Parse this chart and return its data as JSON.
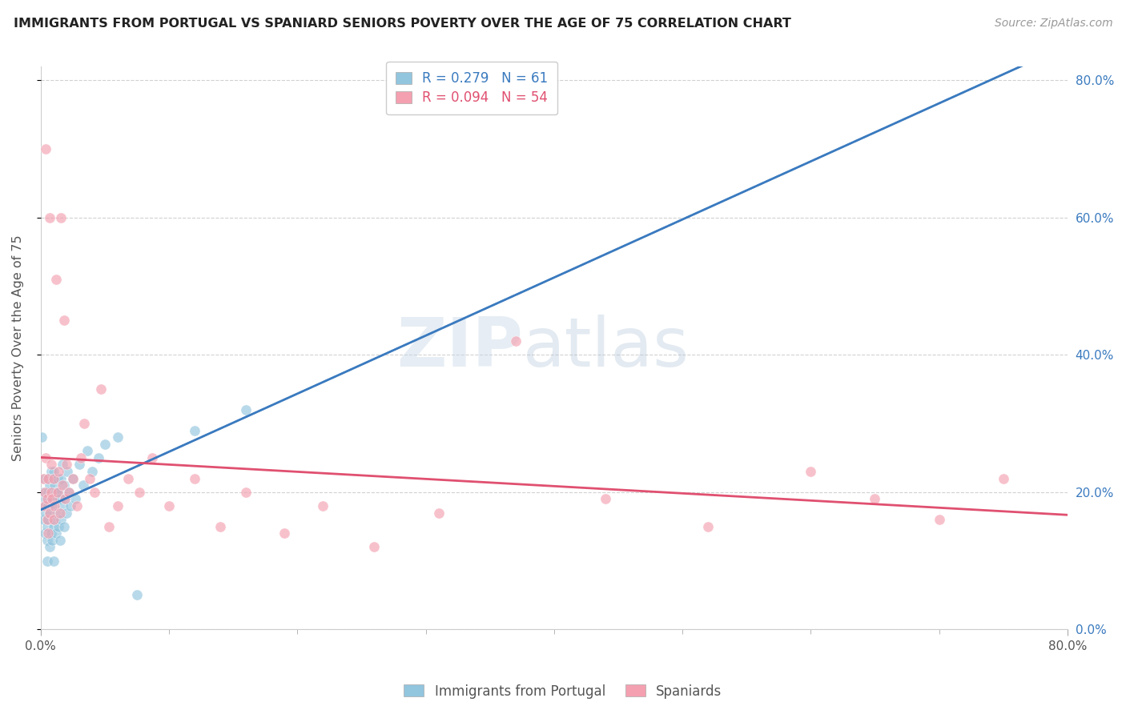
{
  "title": "IMMIGRANTS FROM PORTUGAL VS SPANIARD SENIORS POVERTY OVER THE AGE OF 75 CORRELATION CHART",
  "source": "Source: ZipAtlas.com",
  "ylabel": "Seniors Poverty Over the Age of 75",
  "series1_name": "Immigrants from Portugal",
  "series1_R": 0.279,
  "series1_N": 61,
  "series1_color": "#92c5de",
  "series2_name": "Spaniards",
  "series2_R": 0.094,
  "series2_N": 54,
  "series2_color": "#f4a0b0",
  "line1_color": "#3a7abf",
  "line2_color": "#e05070",
  "xlim": [
    0.0,
    0.8
  ],
  "ylim": [
    0.0,
    0.82
  ],
  "background_color": "#ffffff",
  "watermark_zip": "ZIP",
  "watermark_atlas": "atlas",
  "right_yticks": [
    0.0,
    0.2,
    0.4,
    0.6,
    0.8
  ],
  "right_yticklabels": [
    "0.0%",
    "20.0%",
    "40.0%",
    "60.0%",
    "80.0%"
  ],
  "portugal_x": [
    0.001,
    0.002,
    0.002,
    0.003,
    0.003,
    0.003,
    0.004,
    0.004,
    0.005,
    0.005,
    0.005,
    0.005,
    0.006,
    0.006,
    0.006,
    0.007,
    0.007,
    0.007,
    0.008,
    0.008,
    0.008,
    0.009,
    0.009,
    0.009,
    0.01,
    0.01,
    0.01,
    0.01,
    0.011,
    0.011,
    0.012,
    0.012,
    0.013,
    0.013,
    0.014,
    0.014,
    0.015,
    0.015,
    0.016,
    0.016,
    0.017,
    0.017,
    0.018,
    0.018,
    0.019,
    0.02,
    0.021,
    0.022,
    0.023,
    0.025,
    0.027,
    0.03,
    0.033,
    0.036,
    0.04,
    0.045,
    0.05,
    0.06,
    0.075,
    0.12,
    0.16
  ],
  "portugal_y": [
    0.28,
    0.2,
    0.16,
    0.14,
    0.18,
    0.22,
    0.17,
    0.19,
    0.1,
    0.13,
    0.15,
    0.22,
    0.16,
    0.18,
    0.2,
    0.12,
    0.17,
    0.21,
    0.14,
    0.19,
    0.23,
    0.13,
    0.18,
    0.22,
    0.1,
    0.15,
    0.19,
    0.23,
    0.16,
    0.21,
    0.14,
    0.2,
    0.17,
    0.22,
    0.15,
    0.2,
    0.13,
    0.19,
    0.16,
    0.22,
    0.18,
    0.24,
    0.15,
    0.21,
    0.19,
    0.17,
    0.23,
    0.2,
    0.18,
    0.22,
    0.19,
    0.24,
    0.21,
    0.26,
    0.23,
    0.25,
    0.27,
    0.28,
    0.05,
    0.29,
    0.32
  ],
  "spaniard_x": [
    0.002,
    0.003,
    0.003,
    0.004,
    0.004,
    0.005,
    0.005,
    0.006,
    0.006,
    0.007,
    0.007,
    0.008,
    0.008,
    0.009,
    0.01,
    0.01,
    0.011,
    0.012,
    0.013,
    0.014,
    0.015,
    0.016,
    0.017,
    0.018,
    0.019,
    0.02,
    0.022,
    0.025,
    0.028,
    0.031,
    0.034,
    0.038,
    0.042,
    0.047,
    0.053,
    0.06,
    0.068,
    0.077,
    0.087,
    0.1,
    0.12,
    0.14,
    0.16,
    0.19,
    0.22,
    0.26,
    0.31,
    0.37,
    0.44,
    0.52,
    0.6,
    0.65,
    0.7,
    0.75
  ],
  "spaniard_y": [
    0.22,
    0.2,
    0.18,
    0.25,
    0.7,
    0.16,
    0.19,
    0.14,
    0.22,
    0.6,
    0.17,
    0.2,
    0.24,
    0.19,
    0.22,
    0.16,
    0.18,
    0.51,
    0.2,
    0.23,
    0.17,
    0.6,
    0.21,
    0.45,
    0.19,
    0.24,
    0.2,
    0.22,
    0.18,
    0.25,
    0.3,
    0.22,
    0.2,
    0.35,
    0.15,
    0.18,
    0.22,
    0.2,
    0.25,
    0.18,
    0.22,
    0.15,
    0.2,
    0.14,
    0.18,
    0.12,
    0.17,
    0.42,
    0.19,
    0.15,
    0.23,
    0.19,
    0.16,
    0.22
  ]
}
